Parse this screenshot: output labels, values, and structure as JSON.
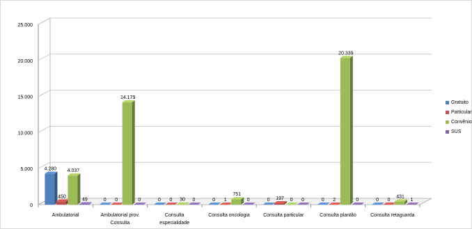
{
  "chart_data": {
    "type": "bar",
    "categories": [
      [
        "Ambulatorial"
      ],
      [
        "Ambulatorial prov.",
        "Consulta"
      ],
      [
        "Consulta",
        "especialidade"
      ],
      [
        "Consulta oncologia"
      ],
      [
        "Consulta particular"
      ],
      [
        "Consulta plantão"
      ],
      [
        "Consulta retaguarda"
      ]
    ],
    "series": [
      {
        "name": "Gratuito",
        "color": "#4f81bd",
        "values": [
          4280,
          0,
          0,
          0,
          0,
          0,
          0
        ],
        "labels": [
          "4.280",
          "0",
          "0",
          "0",
          "0",
          "0",
          "0"
        ]
      },
      {
        "name": "Particular",
        "color": "#c0504d",
        "values": [
          450,
          0,
          0,
          1,
          197,
          2,
          0
        ],
        "labels": [
          "450",
          "0",
          "0",
          "1",
          "197",
          "2",
          "0"
        ]
      },
      {
        "name": "Convênio",
        "color": "#9bbb59",
        "values": [
          4037,
          14179,
          30,
          751,
          0,
          20339,
          431
        ],
        "labels": [
          "4.037",
          "14.179",
          "30",
          "751",
          "0",
          "20.339",
          "431"
        ]
      },
      {
        "name": "SUS",
        "color": "#8064a2",
        "values": [
          49,
          0,
          0,
          0,
          0,
          0,
          1
        ],
        "labels": [
          "49",
          "0",
          "0",
          "0",
          "0",
          "0",
          "1"
        ]
      }
    ],
    "yticks": [
      {
        "value": 0,
        "label": "0"
      },
      {
        "value": 5000,
        "label": "5.000"
      },
      {
        "value": 10000,
        "label": "10.000"
      },
      {
        "value": 15000,
        "label": "15.000"
      },
      {
        "value": 20000,
        "label": "20.000"
      },
      {
        "value": 25000,
        "label": "25.000"
      }
    ],
    "ylim": [
      0,
      25000
    ],
    "grid": true,
    "three_d": true,
    "legend_position": "right",
    "legend_labels": [
      "Gratuito",
      "Particular",
      "Convênio",
      "SUS"
    ]
  }
}
